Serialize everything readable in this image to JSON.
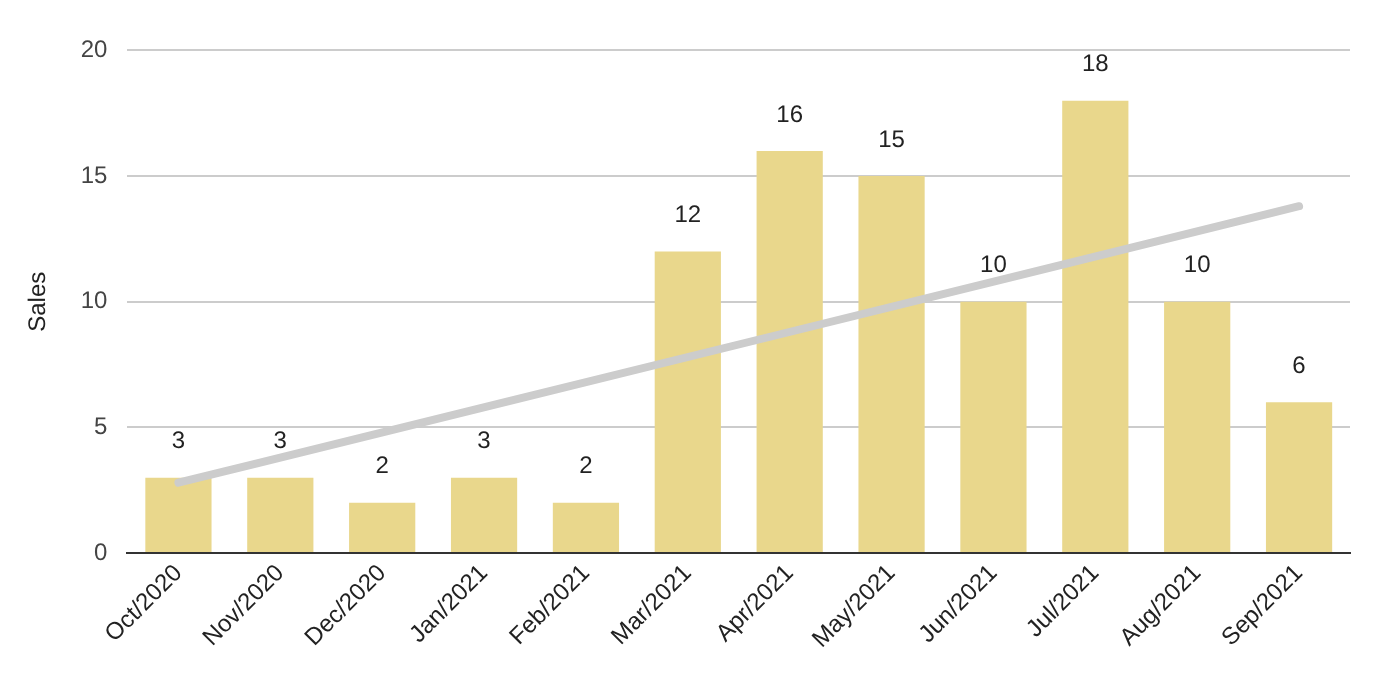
{
  "chart_data": {
    "type": "bar",
    "ylabel": "Sales",
    "categories": [
      "Oct/2020",
      "Nov/2020",
      "Dec/2020",
      "Jan/2021",
      "Feb/2021",
      "Mar/2021",
      "Apr/2021",
      "May/2021",
      "Jun/2021",
      "Jul/2021",
      "Aug/2021",
      "Sep/2021"
    ],
    "series": [
      {
        "color": "#e9d78c",
        "values": [
          3,
          3,
          2,
          3,
          2,
          12,
          16,
          15,
          10,
          18,
          10,
          6
        ],
        "value_labels": [
          "3",
          "3",
          "2",
          "3",
          "2",
          "12",
          "16",
          "15",
          "10",
          "18",
          "10",
          "6"
        ]
      },
      {
        "type": "line",
        "color": "#cccccc",
        "x": [
          "Oct/2020",
          "Sep/2021"
        ],
        "values": [
          2.8,
          13.8
        ]
      }
    ],
    "ylim": [
      0,
      20
    ],
    "yticks": [
      0,
      5,
      10,
      15,
      20
    ],
    "grid": "y",
    "legend": false
  }
}
